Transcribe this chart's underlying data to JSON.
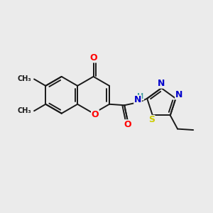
{
  "bg_color": "#ebebeb",
  "bond_color": "#1a1a1a",
  "bond_width": 1.4,
  "atom_colors": {
    "O": "#ff0000",
    "N": "#0000cc",
    "S": "#cccc00",
    "C": "#1a1a1a",
    "H": "#3a9a9a"
  },
  "font_size": 8.5,
  "figsize": [
    3.0,
    3.0
  ],
  "dpi": 100
}
